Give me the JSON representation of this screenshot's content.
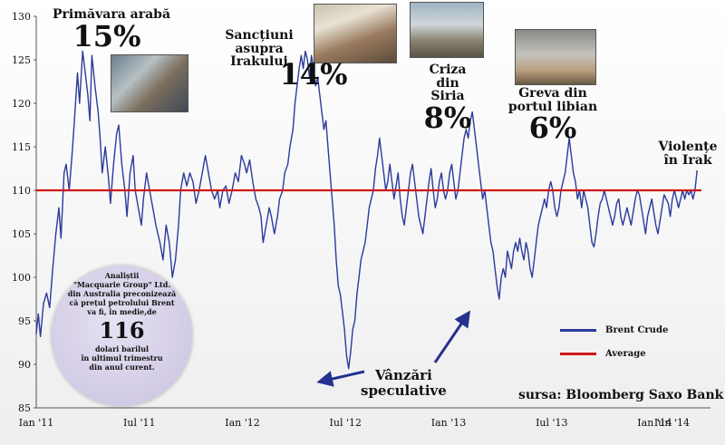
{
  "chart_data": {
    "type": "line",
    "series": [
      {
        "name": "Brent Crude",
        "color": "#2a3a9c",
        "points": [
          [
            0,
            93.5
          ],
          [
            0.01,
            95.8
          ],
          [
            0.02,
            93.2
          ],
          [
            0.035,
            97
          ],
          [
            0.05,
            98.2
          ],
          [
            0.065,
            96.5
          ],
          [
            0.08,
            101
          ],
          [
            0.095,
            105
          ],
          [
            0.11,
            108
          ],
          [
            0.12,
            104.5
          ],
          [
            0.135,
            112
          ],
          [
            0.145,
            113
          ],
          [
            0.16,
            110
          ],
          [
            0.175,
            114.5
          ],
          [
            0.185,
            118
          ],
          [
            0.2,
            123.5
          ],
          [
            0.21,
            120
          ],
          [
            0.225,
            126
          ],
          [
            0.235,
            124
          ],
          [
            0.25,
            121
          ],
          [
            0.26,
            118
          ],
          [
            0.27,
            125.5
          ],
          [
            0.285,
            122
          ],
          [
            0.3,
            119
          ],
          [
            0.31,
            116
          ],
          [
            0.32,
            112
          ],
          [
            0.335,
            115
          ],
          [
            0.35,
            111.5
          ],
          [
            0.36,
            108.5
          ],
          [
            0.375,
            113
          ],
          [
            0.39,
            116.5
          ],
          [
            0.4,
            117.5
          ],
          [
            0.415,
            113
          ],
          [
            0.43,
            110
          ],
          [
            0.44,
            107
          ],
          [
            0.455,
            112
          ],
          [
            0.47,
            114
          ],
          [
            0.48,
            110
          ],
          [
            0.495,
            108
          ],
          [
            0.51,
            106
          ],
          [
            0.52,
            109
          ],
          [
            0.535,
            112
          ],
          [
            0.55,
            110
          ],
          [
            0.565,
            108
          ],
          [
            0.58,
            106
          ],
          [
            0.6,
            104
          ],
          [
            0.615,
            102
          ],
          [
            0.63,
            106
          ],
          [
            0.645,
            104
          ],
          [
            0.66,
            100
          ],
          [
            0.675,
            102
          ],
          [
            0.69,
            106
          ],
          [
            0.7,
            110
          ],
          [
            0.715,
            112
          ],
          [
            0.73,
            110.5
          ],
          [
            0.745,
            112
          ],
          [
            0.76,
            111
          ],
          [
            0.775,
            108.5
          ],
          [
            0.79,
            110
          ],
          [
            0.805,
            112
          ],
          [
            0.82,
            114
          ],
          [
            0.835,
            112
          ],
          [
            0.85,
            110
          ],
          [
            0.865,
            109
          ],
          [
            0.88,
            110
          ],
          [
            0.89,
            108
          ],
          [
            0.905,
            110
          ],
          [
            0.92,
            110.5
          ],
          [
            0.935,
            108.5
          ],
          [
            0.95,
            110
          ],
          [
            0.965,
            112
          ],
          [
            0.98,
            111
          ],
          [
            0.995,
            114
          ],
          [
            1.01,
            113
          ],
          [
            1.02,
            112
          ],
          [
            1.035,
            113.5
          ],
          [
            1.05,
            111
          ],
          [
            1.065,
            109
          ],
          [
            1.08,
            108
          ],
          [
            1.09,
            107
          ],
          [
            1.1,
            104
          ],
          [
            1.115,
            106
          ],
          [
            1.13,
            108
          ],
          [
            1.14,
            107
          ],
          [
            1.155,
            105
          ],
          [
            1.17,
            107
          ],
          [
            1.18,
            109
          ],
          [
            1.195,
            110
          ],
          [
            1.205,
            112
          ],
          [
            1.22,
            113
          ],
          [
            1.23,
            115
          ],
          [
            1.245,
            117
          ],
          [
            1.255,
            120
          ],
          [
            1.265,
            122
          ],
          [
            1.275,
            124
          ],
          [
            1.285,
            125.5
          ],
          [
            1.295,
            124
          ],
          [
            1.305,
            126
          ],
          [
            1.315,
            125
          ],
          [
            1.325,
            123
          ],
          [
            1.335,
            125.5
          ],
          [
            1.345,
            124
          ],
          [
            1.355,
            122
          ],
          [
            1.365,
            123
          ],
          [
            1.375,
            121
          ],
          [
            1.385,
            119
          ],
          [
            1.395,
            117
          ],
          [
            1.405,
            118
          ],
          [
            1.415,
            115
          ],
          [
            1.425,
            112
          ],
          [
            1.435,
            109
          ],
          [
            1.445,
            106
          ],
          [
            1.455,
            102
          ],
          [
            1.465,
            99
          ],
          [
            1.475,
            98
          ],
          [
            1.485,
            96
          ],
          [
            1.495,
            94
          ],
          [
            1.505,
            91
          ],
          [
            1.515,
            89.5
          ],
          [
            1.525,
            91.5
          ],
          [
            1.535,
            94
          ],
          [
            1.545,
            95
          ],
          [
            1.555,
            98
          ],
          [
            1.565,
            100
          ],
          [
            1.575,
            102
          ],
          [
            1.585,
            103
          ],
          [
            1.595,
            104
          ],
          [
            1.605,
            106
          ],
          [
            1.615,
            108
          ],
          [
            1.625,
            109
          ],
          [
            1.635,
            110
          ],
          [
            1.645,
            112.5
          ],
          [
            1.655,
            114
          ],
          [
            1.665,
            116
          ],
          [
            1.675,
            114
          ],
          [
            1.685,
            112
          ],
          [
            1.695,
            110
          ],
          [
            1.705,
            111
          ],
          [
            1.715,
            113
          ],
          [
            1.725,
            111
          ],
          [
            1.735,
            109
          ],
          [
            1.745,
            110.5
          ],
          [
            1.755,
            112
          ],
          [
            1.765,
            109
          ],
          [
            1.775,
            107
          ],
          [
            1.785,
            106
          ],
          [
            1.795,
            108
          ],
          [
            1.805,
            110
          ],
          [
            1.815,
            112
          ],
          [
            1.825,
            113
          ],
          [
            1.835,
            111
          ],
          [
            1.845,
            109
          ],
          [
            1.855,
            107
          ],
          [
            1.865,
            106
          ],
          [
            1.875,
            105
          ],
          [
            1.885,
            107
          ],
          [
            1.895,
            109
          ],
          [
            1.905,
            111
          ],
          [
            1.915,
            112.5
          ],
          [
            1.925,
            110
          ],
          [
            1.935,
            108
          ],
          [
            1.945,
            109
          ],
          [
            1.955,
            111
          ],
          [
            1.965,
            112
          ],
          [
            1.975,
            110
          ],
          [
            1.985,
            109
          ],
          [
            1.995,
            110
          ],
          [
            2.005,
            112
          ],
          [
            2.015,
            113
          ],
          [
            2.025,
            111
          ],
          [
            2.035,
            109
          ],
          [
            2.045,
            110
          ],
          [
            2.055,
            112
          ],
          [
            2.065,
            114
          ],
          [
            2.075,
            116
          ],
          [
            2.085,
            117
          ],
          [
            2.095,
            116
          ],
          [
            2.105,
            118
          ],
          [
            2.115,
            119
          ],
          [
            2.125,
            117
          ],
          [
            2.135,
            115
          ],
          [
            2.145,
            113
          ],
          [
            2.155,
            111
          ],
          [
            2.165,
            109
          ],
          [
            2.175,
            110
          ],
          [
            2.185,
            108
          ],
          [
            2.195,
            106
          ],
          [
            2.205,
            104
          ],
          [
            2.215,
            103
          ],
          [
            2.225,
            101
          ],
          [
            2.235,
            99
          ],
          [
            2.245,
            97.5
          ],
          [
            2.255,
            100
          ],
          [
            2.265,
            101
          ],
          [
            2.275,
            100
          ],
          [
            2.285,
            103
          ],
          [
            2.295,
            102
          ],
          [
            2.305,
            101
          ],
          [
            2.315,
            103
          ],
          [
            2.325,
            104
          ],
          [
            2.335,
            103
          ],
          [
            2.345,
            104.5
          ],
          [
            2.355,
            103
          ],
          [
            2.365,
            102
          ],
          [
            2.375,
            104
          ],
          [
            2.385,
            103
          ],
          [
            2.395,
            101
          ],
          [
            2.405,
            100
          ],
          [
            2.415,
            102
          ],
          [
            2.425,
            104
          ],
          [
            2.435,
            106
          ],
          [
            2.445,
            107
          ],
          [
            2.455,
            108
          ],
          [
            2.465,
            109
          ],
          [
            2.475,
            108
          ],
          [
            2.485,
            110
          ],
          [
            2.495,
            111
          ],
          [
            2.505,
            110
          ],
          [
            2.515,
            108
          ],
          [
            2.525,
            107
          ],
          [
            2.535,
            108
          ],
          [
            2.545,
            110
          ],
          [
            2.555,
            111
          ],
          [
            2.565,
            112
          ],
          [
            2.575,
            114
          ],
          [
            2.585,
            116
          ],
          [
            2.595,
            114
          ],
          [
            2.605,
            112
          ],
          [
            2.615,
            111
          ],
          [
            2.625,
            109
          ],
          [
            2.635,
            110
          ],
          [
            2.645,
            108
          ],
          [
            2.655,
            110
          ],
          [
            2.665,
            109
          ],
          [
            2.675,
            108
          ],
          [
            2.685,
            106
          ],
          [
            2.695,
            104
          ],
          [
            2.705,
            103.5
          ],
          [
            2.715,
            105
          ],
          [
            2.725,
            107
          ],
          [
            2.735,
            108.5
          ],
          [
            2.745,
            109
          ],
          [
            2.755,
            110
          ],
          [
            2.765,
            109
          ],
          [
            2.775,
            108
          ],
          [
            2.785,
            107
          ],
          [
            2.795,
            106
          ],
          [
            2.805,
            107
          ],
          [
            2.815,
            108.5
          ],
          [
            2.825,
            109
          ],
          [
            2.835,
            107
          ],
          [
            2.845,
            106
          ],
          [
            2.855,
            107
          ],
          [
            2.865,
            108
          ],
          [
            2.875,
            107
          ],
          [
            2.885,
            106
          ],
          [
            2.895,
            107.5
          ],
          [
            2.905,
            109
          ],
          [
            2.915,
            110
          ],
          [
            2.925,
            109.5
          ],
          [
            2.935,
            108
          ],
          [
            2.945,
            106.5
          ],
          [
            2.955,
            105
          ],
          [
            2.965,
            107
          ],
          [
            2.975,
            108
          ],
          [
            2.985,
            109
          ],
          [
            2.995,
            107.5
          ],
          [
            3.005,
            106
          ],
          [
            3.015,
            105
          ],
          [
            3.025,
            106.5
          ],
          [
            3.035,
            108
          ],
          [
            3.045,
            109.5
          ],
          [
            3.055,
            109
          ],
          [
            3.065,
            108.5
          ],
          [
            3.075,
            107
          ],
          [
            3.085,
            109
          ],
          [
            3.095,
            110
          ],
          [
            3.105,
            109
          ],
          [
            3.115,
            108
          ],
          [
            3.125,
            109
          ],
          [
            3.135,
            110
          ],
          [
            3.145,
            109
          ],
          [
            3.155,
            110
          ],
          [
            3.165,
            109.5
          ],
          [
            3.175,
            110
          ],
          [
            3.185,
            109
          ],
          [
            3.195,
            110
          ],
          [
            3.205,
            112.3
          ]
        ]
      },
      {
        "name": "Average",
        "color": "#d01818",
        "value": 110
      }
    ],
    "xticks": [
      {
        "label": "Ian '11",
        "x": 0
      },
      {
        "label": "Iul '11",
        "x": 0.5
      },
      {
        "label": "Ian '12",
        "x": 1.0
      },
      {
        "label": "Iul '12",
        "x": 1.5
      },
      {
        "label": "Ian '13",
        "x": 2.0
      },
      {
        "label": "Iul '13",
        "x": 2.5
      },
      {
        "label": "Ian '14",
        "x": 3.0
      },
      {
        "label": "Iun '14",
        "x": 3.083
      }
    ],
    "yticks": [
      85,
      90,
      95,
      100,
      105,
      110,
      115,
      120,
      125,
      130
    ],
    "xlim": [
      0,
      3.27
    ],
    "ylim": [
      85,
      130
    ],
    "grid": false,
    "legend_position": "bottom-right",
    "annotations": [
      {
        "title": "Primăvara arabă",
        "pct": "15%"
      },
      {
        "title": "Sancțiuni asupra Irakului",
        "pct": "14%"
      },
      {
        "title": "Criza din Siria",
        "pct": "8%"
      },
      {
        "title": "Greva din portul libian",
        "pct": "6%"
      },
      {
        "title": "Violențe în Irak",
        "pct": ""
      }
    ]
  },
  "bubble": {
    "text_top": [
      "Analiștii",
      "\"Macquarie Group\" Ltd.",
      "din Australia preconizează",
      "că prețul petrolului Brent",
      "va fi, în medie,de"
    ],
    "big_value": "116",
    "text_bottom": [
      "dolari barilul",
      "în ultimul trimestru",
      "din anul curent."
    ]
  },
  "speculative_label": [
    "Vânzări",
    "speculative"
  ],
  "source": "sursa: Bloomberg  Saxo Bank",
  "colors": {
    "arrow": "#24318f"
  }
}
